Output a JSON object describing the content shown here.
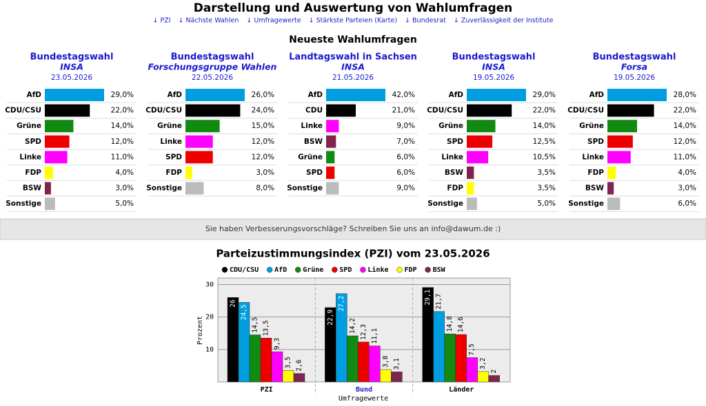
{
  "header": {
    "title": "Darstellung und Auswertung von Wahlumfragen",
    "nav": [
      "↓ PZI",
      "↓ Nächste Wahlen",
      "↓ Umfragewerte",
      "↓ Stärkste Parteien (Karte)",
      "↓ Bundesrat",
      "↓ Zuverlässigkeit der Institute"
    ]
  },
  "section_title": "Neueste Wahlumfragen",
  "party_colors": {
    "AfD": "#009ee0",
    "CDU/CSU": "#000000",
    "CDU": "#000000",
    "Grüne": "#118a11",
    "SPD": "#ee0000",
    "Linke": "#ff00ff",
    "FDP": "#ffff00",
    "BSW": "#7d254f",
    "Sonstige": "#bbbbbb"
  },
  "polls": [
    {
      "title": "Bundestagswahl",
      "institute": "INSA",
      "date": "23.05.2026",
      "parties": [
        "AfD",
        "CDU/CSU",
        "Grüne",
        "SPD",
        "Linke",
        "FDP",
        "BSW",
        "Sonstige"
      ],
      "values": [
        29,
        22,
        14,
        12,
        11,
        4,
        3,
        5
      ],
      "value_labels": [
        "29,0%",
        "22,0%",
        "14,0%",
        "12,0%",
        "11,0%",
        "4,0%",
        "3,0%",
        "5,0%"
      ]
    },
    {
      "title": "Bundestagswahl",
      "institute": "Forschungsgruppe Wahlen",
      "date": "22.05.2026",
      "parties": [
        "AfD",
        "CDU/CSU",
        "Grüne",
        "Linke",
        "SPD",
        "FDP",
        "Sonstige"
      ],
      "values": [
        26,
        24,
        15,
        12,
        12,
        3,
        8
      ],
      "value_labels": [
        "26,0%",
        "24,0%",
        "15,0%",
        "12,0%",
        "12,0%",
        "3,0%",
        "8,0%"
      ]
    },
    {
      "title": "Landtagswahl in Sachsen",
      "institute": "INSA",
      "date": "21.05.2026",
      "parties": [
        "AfD",
        "CDU",
        "Linke",
        "BSW",
        "Grüne",
        "SPD",
        "Sonstige"
      ],
      "values": [
        42,
        21,
        9,
        7,
        6,
        6,
        9
      ],
      "value_labels": [
        "42,0%",
        "21,0%",
        "9,0%",
        "7,0%",
        "6,0%",
        "6,0%",
        "9,0%"
      ]
    },
    {
      "title": "Bundestagswahl",
      "institute": "INSA",
      "date": "19.05.2026",
      "parties": [
        "AfD",
        "CDU/CSU",
        "Grüne",
        "SPD",
        "Linke",
        "BSW",
        "FDP",
        "Sonstige"
      ],
      "values": [
        29,
        22,
        14,
        12.5,
        10.5,
        3.5,
        3.5,
        5
      ],
      "value_labels": [
        "29,0%",
        "22,0%",
        "14,0%",
        "12,5%",
        "10,5%",
        "3,5%",
        "3,5%",
        "5,0%"
      ]
    },
    {
      "title": "Bundestagswahl",
      "institute": "Forsa",
      "date": "19.05.2026",
      "parties": [
        "AfD",
        "CDU/CSU",
        "Grüne",
        "SPD",
        "Linke",
        "FDP",
        "BSW",
        "Sonstige"
      ],
      "values": [
        28,
        22,
        14,
        12,
        11,
        4,
        3,
        6
      ],
      "value_labels": [
        "28,0%",
        "22,0%",
        "14,0%",
        "12,0%",
        "11,0%",
        "4,0%",
        "3,0%",
        "6,0%"
      ]
    }
  ],
  "feedback": "Sie haben Verbesserungsvorschläge? Schreiben Sie uns an info@dawum.de :)",
  "chart_data": {
    "type": "bar",
    "title": "Parteizustimmungsindex (PZI) vom 23.05.2026",
    "y_label": "Prozent",
    "x_label": "Umfragewerte",
    "legend": "top",
    "grid": true,
    "categories": [
      "PZI",
      "Bund",
      "Länder"
    ],
    "ylim": [
      0,
      32
    ],
    "yticks": [
      10,
      20,
      30
    ],
    "series": [
      {
        "name": "CDU/CSU",
        "color": "#000000",
        "values": [
          26,
          22.9,
          29.1
        ],
        "value_labels": [
          "26",
          "22,9",
          "29,1"
        ]
      },
      {
        "name": "AfD",
        "color": "#009ee0",
        "values": [
          24.5,
          27.2,
          21.7
        ],
        "value_labels": [
          "24,5",
          "27,2",
          "21,7"
        ]
      },
      {
        "name": "Grüne",
        "color": "#118a11",
        "values": [
          14.5,
          14.2,
          14.8
        ],
        "value_labels": [
          "14,5",
          "14,2",
          "14,8"
        ]
      },
      {
        "name": "SPD",
        "color": "#ee0000",
        "values": [
          13.5,
          12.3,
          14.6
        ],
        "value_labels": [
          "13,5",
          "12,3",
          "14,6"
        ]
      },
      {
        "name": "Linke",
        "color": "#ff00ff",
        "values": [
          9.3,
          11.1,
          7.5
        ],
        "value_labels": [
          "9,3",
          "11,1",
          "7,5"
        ]
      },
      {
        "name": "FDP",
        "color": "#ffff00",
        "values": [
          3.5,
          3.8,
          3.2
        ],
        "value_labels": [
          "3,5",
          "3,8",
          "3,2"
        ]
      },
      {
        "name": "BSW",
        "color": "#7d254f",
        "values": [
          2.6,
          3.1,
          2
        ],
        "value_labels": [
          "2,6",
          "3,1",
          "2"
        ]
      }
    ]
  }
}
